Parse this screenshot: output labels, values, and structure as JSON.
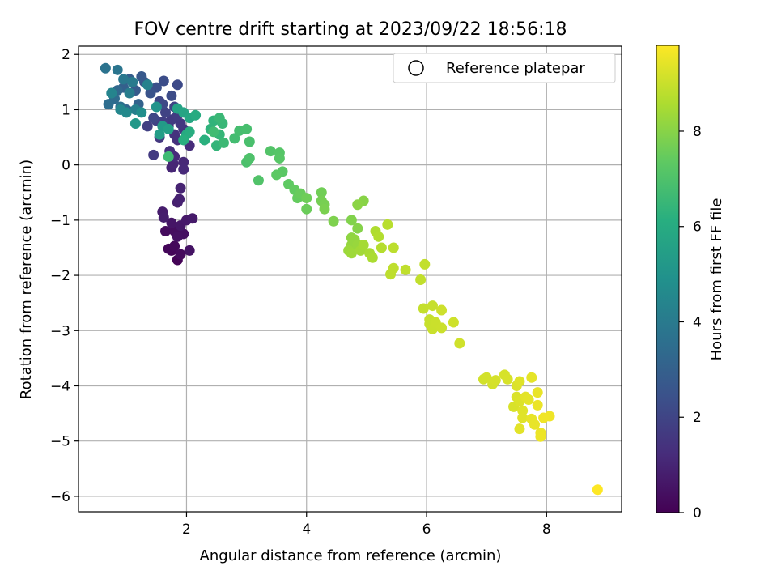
{
  "chart_data": {
    "type": "scatter",
    "title": "FOV centre drift starting at 2023/09/22 18:56:18",
    "xlabel": "Angular distance from reference (arcmin)",
    "ylabel": "Rotation from reference (arcmin)",
    "xlim": [
      0.2,
      9.25
    ],
    "ylim": [
      -6.28,
      2.15
    ],
    "xticks": [
      2,
      4,
      6,
      8
    ],
    "yticks": [
      2,
      1,
      0,
      -1,
      -2,
      -3,
      -4,
      -5,
      -6
    ],
    "grid": true,
    "legend": {
      "placement": "top-right",
      "entries": [
        "Reference platepar"
      ]
    },
    "colorbar": {
      "label": "Hours from first FF file",
      "ticks": [
        0,
        2,
        4,
        6,
        8
      ],
      "range": [
        0,
        9.8
      ],
      "colormap": "viridis"
    },
    "points": [
      [
        1.85,
        -1.72,
        0.05
      ],
      [
        1.75,
        -1.55,
        0.1
      ],
      [
        1.7,
        -1.52,
        0.15
      ],
      [
        1.8,
        -1.47,
        0.2
      ],
      [
        1.9,
        -1.62,
        0.25
      ],
      [
        1.65,
        -1.2,
        0.3
      ],
      [
        1.8,
        -1.2,
        0.35
      ],
      [
        1.95,
        -1.25,
        0.4
      ],
      [
        1.85,
        -1.3,
        0.45
      ],
      [
        2.05,
        -1.55,
        0.5
      ],
      [
        1.75,
        -1.05,
        0.55
      ],
      [
        1.9,
        -1.1,
        0.6
      ],
      [
        2.0,
        -1.0,
        0.65
      ],
      [
        2.1,
        -0.97,
        0.7
      ],
      [
        1.6,
        -0.85,
        0.75
      ],
      [
        1.62,
        -0.95,
        0.8
      ],
      [
        1.85,
        -0.68,
        0.85
      ],
      [
        1.88,
        -0.62,
        0.9
      ],
      [
        1.9,
        -0.42,
        0.95
      ],
      [
        1.75,
        -0.05,
        1.0
      ],
      [
        1.78,
        0.02,
        1.05
      ],
      [
        1.95,
        0.05,
        1.1
      ],
      [
        1.95,
        -0.08,
        1.15
      ],
      [
        1.8,
        0.15,
        1.2
      ],
      [
        2.05,
        0.35,
        1.25
      ],
      [
        1.72,
        0.25,
        1.3
      ],
      [
        1.85,
        0.45,
        1.35
      ],
      [
        1.8,
        0.55,
        1.4
      ],
      [
        1.7,
        0.7,
        1.45
      ],
      [
        1.95,
        0.65,
        1.5
      ],
      [
        1.55,
        0.5,
        1.55
      ],
      [
        1.9,
        0.75,
        1.6
      ],
      [
        1.45,
        0.18,
        1.65
      ],
      [
        1.75,
        0.82,
        1.7
      ],
      [
        1.85,
        0.9,
        1.75
      ],
      [
        1.6,
        0.78,
        1.8
      ],
      [
        1.35,
        0.7,
        1.85
      ],
      [
        1.5,
        0.8,
        1.9
      ],
      [
        1.65,
        0.95,
        1.95
      ],
      [
        1.8,
        1.05,
        2.0
      ],
      [
        1.55,
        1.15,
        2.05
      ],
      [
        1.45,
        0.85,
        2.1
      ],
      [
        1.6,
        1.1,
        2.15
      ],
      [
        1.85,
        1.45,
        2.2
      ],
      [
        1.75,
        1.25,
        2.25
      ],
      [
        1.62,
        1.52,
        2.3
      ],
      [
        1.5,
        1.4,
        2.4
      ],
      [
        1.4,
        1.3,
        2.5
      ],
      [
        1.3,
        1.5,
        2.6
      ],
      [
        1.25,
        1.6,
        2.7
      ],
      [
        1.15,
        1.35,
        2.8
      ],
      [
        1.05,
        1.55,
        2.9
      ],
      [
        0.95,
        1.4,
        3.0
      ],
      [
        1.2,
        1.1,
        3.1
      ],
      [
        1.0,
        1.0,
        3.2
      ],
      [
        0.85,
        1.35,
        3.3
      ],
      [
        0.8,
        1.2,
        3.4
      ],
      [
        0.7,
        1.1,
        3.5
      ],
      [
        0.9,
        1.05,
        3.6
      ],
      [
        0.65,
        1.75,
        3.7
      ],
      [
        0.85,
        1.72,
        3.8
      ],
      [
        0.95,
        1.55,
        3.9
      ],
      [
        1.1,
        1.5,
        4.0
      ],
      [
        1.05,
        1.3,
        4.1
      ],
      [
        1.15,
        1.0,
        4.2
      ],
      [
        1.35,
        1.45,
        4.3
      ],
      [
        0.75,
        1.3,
        4.4
      ],
      [
        0.9,
        1.0,
        4.5
      ],
      [
        1.0,
        0.95,
        4.6
      ],
      [
        1.25,
        0.95,
        4.8
      ],
      [
        1.5,
        1.05,
        5.0
      ],
      [
        1.15,
        0.75,
        5.2
      ],
      [
        1.6,
        0.7,
        5.3
      ],
      [
        1.55,
        0.55,
        5.4
      ],
      [
        1.7,
        0.65,
        5.5
      ],
      [
        1.85,
        1.02,
        5.6
      ],
      [
        1.95,
        0.95,
        5.7
      ],
      [
        2.05,
        0.85,
        5.8
      ],
      [
        2.0,
        0.55,
        5.9
      ],
      [
        2.15,
        0.9,
        6.0
      ],
      [
        2.05,
        0.6,
        6.1
      ],
      [
        1.95,
        0.45,
        6.15
      ],
      [
        2.3,
        0.45,
        6.2
      ],
      [
        2.4,
        0.65,
        6.3
      ],
      [
        2.45,
        0.8,
        6.35
      ],
      [
        2.5,
        0.35,
        6.4
      ],
      [
        2.55,
        0.55,
        6.45
      ],
      [
        2.6,
        0.75,
        6.5
      ],
      [
        2.55,
        0.85,
        6.55
      ],
      [
        2.62,
        0.4,
        6.6
      ],
      [
        1.7,
        0.15,
        6.65
      ],
      [
        2.45,
        0.6,
        6.7
      ],
      [
        2.8,
        0.48,
        6.75
      ],
      [
        2.88,
        0.62,
        6.8
      ],
      [
        3.0,
        0.65,
        6.85
      ],
      [
        3.05,
        0.42,
        6.9
      ],
      [
        3.0,
        0.05,
        6.95
      ],
      [
        3.05,
        0.12,
        7.0
      ],
      [
        3.2,
        -0.28,
        7.05
      ],
      [
        3.4,
        0.25,
        7.1
      ],
      [
        3.55,
        0.22,
        7.15
      ],
      [
        3.55,
        0.12,
        7.2
      ],
      [
        3.6,
        -0.12,
        7.25
      ],
      [
        3.5,
        -0.18,
        7.3
      ],
      [
        3.7,
        -0.35,
        7.35
      ],
      [
        3.8,
        -0.45,
        7.4
      ],
      [
        3.85,
        -0.6,
        7.45
      ],
      [
        3.9,
        -0.52,
        7.5
      ],
      [
        4.0,
        -0.8,
        7.55
      ],
      [
        4.0,
        -0.6,
        7.6
      ],
      [
        4.25,
        -0.5,
        7.65
      ],
      [
        4.25,
        -0.65,
        7.7
      ],
      [
        4.3,
        -0.72,
        7.75
      ],
      [
        4.3,
        -0.8,
        7.8
      ],
      [
        4.45,
        -1.02,
        7.85
      ],
      [
        4.75,
        -1.0,
        7.9
      ],
      [
        4.85,
        -1.15,
        7.95
      ],
      [
        4.95,
        -0.65,
        8.0
      ],
      [
        4.85,
        -0.72,
        8.05
      ],
      [
        4.75,
        -1.32,
        8.1
      ],
      [
        4.8,
        -1.35,
        8.15
      ],
      [
        4.75,
        -1.45,
        8.2
      ],
      [
        4.85,
        -1.45,
        8.25
      ],
      [
        4.7,
        -1.55,
        8.3
      ],
      [
        4.75,
        -1.6,
        8.35
      ],
      [
        4.9,
        -1.55,
        8.4
      ],
      [
        4.95,
        -1.45,
        8.45
      ],
      [
        5.05,
        -1.6,
        8.5
      ],
      [
        5.1,
        -1.68,
        8.55
      ],
      [
        5.15,
        -1.2,
        8.6
      ],
      [
        5.2,
        -1.3,
        8.65
      ],
      [
        5.25,
        -1.5,
        8.7
      ],
      [
        5.35,
        -1.08,
        8.75
      ],
      [
        5.45,
        -1.5,
        8.8
      ],
      [
        5.4,
        -1.98,
        8.82
      ],
      [
        5.45,
        -1.87,
        8.84
      ],
      [
        5.65,
        -1.9,
        8.86
      ],
      [
        5.9,
        -2.08,
        8.88
      ],
      [
        5.97,
        -1.8,
        8.9
      ],
      [
        5.95,
        -2.6,
        8.92
      ],
      [
        6.05,
        -2.8,
        8.94
      ],
      [
        6.1,
        -2.55,
        8.96
      ],
      [
        6.05,
        -2.88,
        8.98
      ],
      [
        6.1,
        -2.97,
        9.0
      ],
      [
        6.15,
        -2.85,
        9.02
      ],
      [
        6.25,
        -2.95,
        9.04
      ],
      [
        6.25,
        -2.63,
        9.06
      ],
      [
        6.45,
        -2.85,
        9.08
      ],
      [
        6.55,
        -3.23,
        9.1
      ],
      [
        6.95,
        -3.88,
        9.12
      ],
      [
        7.0,
        -3.85,
        9.14
      ],
      [
        7.1,
        -3.97,
        9.16
      ],
      [
        7.15,
        -3.9,
        9.18
      ],
      [
        7.3,
        -3.8,
        9.2
      ],
      [
        7.35,
        -3.88,
        9.22
      ],
      [
        7.45,
        -4.38,
        9.24
      ],
      [
        7.5,
        -4.2,
        9.26
      ],
      [
        7.5,
        -4.0,
        9.28
      ],
      [
        7.55,
        -4.28,
        9.3
      ],
      [
        7.55,
        -3.92,
        9.32
      ],
      [
        7.6,
        -4.45,
        9.34
      ],
      [
        7.6,
        -4.58,
        9.36
      ],
      [
        7.55,
        -4.78,
        9.38
      ],
      [
        7.65,
        -4.2,
        9.4
      ],
      [
        7.7,
        -4.25,
        9.42
      ],
      [
        7.75,
        -3.85,
        9.44
      ],
      [
        7.75,
        -4.6,
        9.46
      ],
      [
        7.8,
        -4.7,
        9.48
      ],
      [
        7.85,
        -4.12,
        9.5
      ],
      [
        7.85,
        -4.35,
        9.52
      ],
      [
        7.9,
        -4.85,
        9.54
      ],
      [
        7.9,
        -4.92,
        9.56
      ],
      [
        8.05,
        -4.55,
        9.58
      ],
      [
        7.95,
        -4.58,
        9.6
      ],
      [
        8.85,
        -5.88,
        9.8
      ]
    ]
  }
}
